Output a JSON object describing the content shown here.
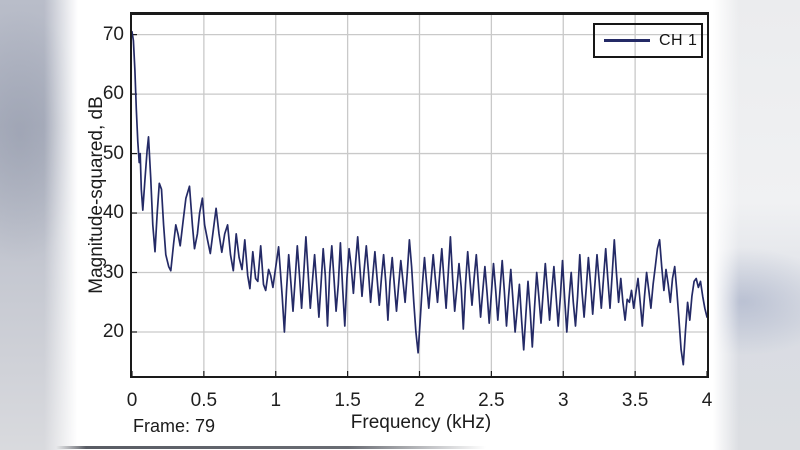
{
  "footer": {
    "frame_label": "Frame: 79"
  },
  "colors": {
    "background": "#ffffff",
    "grid": "#c9c9c9",
    "axis": "#1a1a1a",
    "line": "#242a66",
    "text": "#1c1c1c"
  },
  "chart_data": {
    "type": "line",
    "title": "",
    "xlabel": "Frequency (kHz)",
    "ylabel": "Magnitude-squared, dB",
    "xlim": [
      0,
      4
    ],
    "ylim": [
      12.6,
      73.3
    ],
    "xticks": [
      0,
      0.5,
      1,
      1.5,
      2,
      2.5,
      3,
      3.5,
      4
    ],
    "yticks": [
      20,
      30,
      40,
      50,
      60,
      70
    ],
    "grid": true,
    "legend": {
      "position": "top-right",
      "entries": [
        {
          "label": "CH 1",
          "color": "#242a66"
        }
      ]
    },
    "series": [
      {
        "name": "CH 1",
        "color": "#242a66",
        "points": [
          [
            0.0,
            70.5
          ],
          [
            0.01,
            69.0
          ],
          [
            0.02,
            64.0
          ],
          [
            0.03,
            57.5
          ],
          [
            0.04,
            52.0
          ],
          [
            0.05,
            48.5
          ],
          [
            0.057,
            50.0
          ],
          [
            0.065,
            44.0
          ],
          [
            0.075,
            40.5
          ],
          [
            0.09,
            45.5
          ],
          [
            0.105,
            50.5
          ],
          [
            0.115,
            52.8
          ],
          [
            0.13,
            46.0
          ],
          [
            0.145,
            38.0
          ],
          [
            0.16,
            33.5
          ],
          [
            0.175,
            40.0
          ],
          [
            0.19,
            45.0
          ],
          [
            0.205,
            44.0
          ],
          [
            0.22,
            38.0
          ],
          [
            0.235,
            33.0
          ],
          [
            0.255,
            31.0
          ],
          [
            0.27,
            30.3
          ],
          [
            0.29,
            35.0
          ],
          [
            0.305,
            38.0
          ],
          [
            0.32,
            36.5
          ],
          [
            0.335,
            34.5
          ],
          [
            0.355,
            38.5
          ],
          [
            0.375,
            42.5
          ],
          [
            0.4,
            44.5
          ],
          [
            0.42,
            38.0
          ],
          [
            0.435,
            34.0
          ],
          [
            0.455,
            36.5
          ],
          [
            0.47,
            40.0
          ],
          [
            0.49,
            42.5
          ],
          [
            0.505,
            38.0
          ],
          [
            0.525,
            35.5
          ],
          [
            0.545,
            33.2
          ],
          [
            0.565,
            37.0
          ],
          [
            0.585,
            40.8
          ],
          [
            0.605,
            36.5
          ],
          [
            0.625,
            33.4
          ],
          [
            0.645,
            36.5
          ],
          [
            0.665,
            38.0
          ],
          [
            0.685,
            33.0
          ],
          [
            0.705,
            30.3
          ],
          [
            0.725,
            36.5
          ],
          [
            0.745,
            32.5
          ],
          [
            0.765,
            30.5
          ],
          [
            0.785,
            35.5
          ],
          [
            0.805,
            29.5
          ],
          [
            0.82,
            27.3
          ],
          [
            0.84,
            33.5
          ],
          [
            0.86,
            29.0
          ],
          [
            0.875,
            28.5
          ],
          [
            0.895,
            34.5
          ],
          [
            0.915,
            28.0
          ],
          [
            0.93,
            27.0
          ],
          [
            0.95,
            30.5
          ],
          [
            0.965,
            29.5
          ],
          [
            0.98,
            27.5
          ],
          [
            1.0,
            31.0
          ],
          [
            1.02,
            34.3
          ],
          [
            1.045,
            26.0
          ],
          [
            1.06,
            20.0
          ],
          [
            1.075,
            27.0
          ],
          [
            1.09,
            33.0
          ],
          [
            1.105,
            28.5
          ],
          [
            1.12,
            23.5
          ],
          [
            1.135,
            29.0
          ],
          [
            1.15,
            34.5
          ],
          [
            1.165,
            29.5
          ],
          [
            1.18,
            24.0
          ],
          [
            1.195,
            30.0
          ],
          [
            1.21,
            36.0
          ],
          [
            1.225,
            30.0
          ],
          [
            1.24,
            24.0
          ],
          [
            1.255,
            28.5
          ],
          [
            1.27,
            33.0
          ],
          [
            1.285,
            28.0
          ],
          [
            1.3,
            22.5
          ],
          [
            1.315,
            28.0
          ],
          [
            1.33,
            34.0
          ],
          [
            1.345,
            29.5
          ],
          [
            1.36,
            21.0
          ],
          [
            1.375,
            30.0
          ],
          [
            1.39,
            34.5
          ],
          [
            1.405,
            29.0
          ],
          [
            1.42,
            23.5
          ],
          [
            1.435,
            28.0
          ],
          [
            1.45,
            35.0
          ],
          [
            1.465,
            27.5
          ],
          [
            1.48,
            21.0
          ],
          [
            1.495,
            29.0
          ],
          [
            1.51,
            34.0
          ],
          [
            1.525,
            31.0
          ],
          [
            1.54,
            26.5
          ],
          [
            1.555,
            31.5
          ],
          [
            1.57,
            36.0
          ],
          [
            1.585,
            31.0
          ],
          [
            1.6,
            26.0
          ],
          [
            1.615,
            30.5
          ],
          [
            1.63,
            34.5
          ],
          [
            1.645,
            30.0
          ],
          [
            1.66,
            25.0
          ],
          [
            1.675,
            29.5
          ],
          [
            1.69,
            33.5
          ],
          [
            1.705,
            29.0
          ],
          [
            1.72,
            24.5
          ],
          [
            1.735,
            29.0
          ],
          [
            1.75,
            33.0
          ],
          [
            1.765,
            28.5
          ],
          [
            1.78,
            22.0
          ],
          [
            1.795,
            28.5
          ],
          [
            1.81,
            32.5
          ],
          [
            1.825,
            28.0
          ],
          [
            1.84,
            23.5
          ],
          [
            1.855,
            28.0
          ],
          [
            1.87,
            32.0
          ],
          [
            1.885,
            28.5
          ],
          [
            1.9,
            25.0
          ],
          [
            1.915,
            30.0
          ],
          [
            1.93,
            35.5
          ],
          [
            1.945,
            31.0
          ],
          [
            1.96,
            25.0
          ],
          [
            1.975,
            20.0
          ],
          [
            1.99,
            16.5
          ],
          [
            2.005,
            22.0
          ],
          [
            2.02,
            28.0
          ],
          [
            2.035,
            32.5
          ],
          [
            2.05,
            28.0
          ],
          [
            2.065,
            24.0
          ],
          [
            2.08,
            28.5
          ],
          [
            2.095,
            33.0
          ],
          [
            2.11,
            29.0
          ],
          [
            2.125,
            25.0
          ],
          [
            2.14,
            29.5
          ],
          [
            2.155,
            34.0
          ],
          [
            2.17,
            29.0
          ],
          [
            2.185,
            24.0
          ],
          [
            2.2,
            30.0
          ],
          [
            2.215,
            36.0
          ],
          [
            2.23,
            29.0
          ],
          [
            2.245,
            23.5
          ],
          [
            2.26,
            27.5
          ],
          [
            2.275,
            31.5
          ],
          [
            2.29,
            27.5
          ],
          [
            2.305,
            20.5
          ],
          [
            2.32,
            28.0
          ],
          [
            2.335,
            33.5
          ],
          [
            2.35,
            29.0
          ],
          [
            2.365,
            24.5
          ],
          [
            2.38,
            29.0
          ],
          [
            2.395,
            33.0
          ],
          [
            2.41,
            28.0
          ],
          [
            2.425,
            22.5
          ],
          [
            2.44,
            27.0
          ],
          [
            2.455,
            31.0
          ],
          [
            2.47,
            26.5
          ],
          [
            2.485,
            21.5
          ],
          [
            2.5,
            26.5
          ],
          [
            2.515,
            31.5
          ],
          [
            2.53,
            27.0
          ],
          [
            2.545,
            22.0
          ],
          [
            2.56,
            27.0
          ],
          [
            2.575,
            32.0
          ],
          [
            2.59,
            27.0
          ],
          [
            2.605,
            21.0
          ],
          [
            2.62,
            26.0
          ],
          [
            2.635,
            30.5
          ],
          [
            2.65,
            25.5
          ],
          [
            2.665,
            20.0
          ],
          [
            2.68,
            24.0
          ],
          [
            2.695,
            28.0
          ],
          [
            2.71,
            22.0
          ],
          [
            2.725,
            17.0
          ],
          [
            2.74,
            23.0
          ],
          [
            2.755,
            28.5
          ],
          [
            2.77,
            23.5
          ],
          [
            2.785,
            17.5
          ],
          [
            2.8,
            24.0
          ],
          [
            2.815,
            30.0
          ],
          [
            2.83,
            26.0
          ],
          [
            2.845,
            21.5
          ],
          [
            2.86,
            26.5
          ],
          [
            2.875,
            31.5
          ],
          [
            2.89,
            27.0
          ],
          [
            2.905,
            22.0
          ],
          [
            2.92,
            27.0
          ],
          [
            2.935,
            31.0
          ],
          [
            2.95,
            26.0
          ],
          [
            2.965,
            21.0
          ],
          [
            2.98,
            26.0
          ],
          [
            2.995,
            32.0
          ],
          [
            3.01,
            25.5
          ],
          [
            3.025,
            20.0
          ],
          [
            3.04,
            25.5
          ],
          [
            3.055,
            30.0
          ],
          [
            3.07,
            25.0
          ],
          [
            3.085,
            21.0
          ],
          [
            3.1,
            26.0
          ],
          [
            3.115,
            33.0
          ],
          [
            3.13,
            27.0
          ],
          [
            3.145,
            22.5
          ],
          [
            3.16,
            27.5
          ],
          [
            3.175,
            32.5
          ],
          [
            3.19,
            28.0
          ],
          [
            3.205,
            23.0
          ],
          [
            3.22,
            28.0
          ],
          [
            3.235,
            33.0
          ],
          [
            3.25,
            28.5
          ],
          [
            3.265,
            24.0
          ],
          [
            3.28,
            29.0
          ],
          [
            3.295,
            34.0
          ],
          [
            3.31,
            29.0
          ],
          [
            3.325,
            24.0
          ],
          [
            3.34,
            29.5
          ],
          [
            3.355,
            35.5
          ],
          [
            3.37,
            30.0
          ],
          [
            3.385,
            25.0
          ],
          [
            3.4,
            29.0
          ],
          [
            3.415,
            25.0
          ],
          [
            3.43,
            22.0
          ],
          [
            3.445,
            25.5
          ],
          [
            3.46,
            25.0
          ],
          [
            3.475,
            27.0
          ],
          [
            3.49,
            24.0
          ],
          [
            3.505,
            26.5
          ],
          [
            3.52,
            29.0
          ],
          [
            3.535,
            25.0
          ],
          [
            3.55,
            21.0
          ],
          [
            3.565,
            26.0
          ],
          [
            3.58,
            30.0
          ],
          [
            3.595,
            27.0
          ],
          [
            3.61,
            24.0
          ],
          [
            3.625,
            28.0
          ],
          [
            3.64,
            31.0
          ],
          [
            3.655,
            34.0
          ],
          [
            3.67,
            35.5
          ],
          [
            3.685,
            31.0
          ],
          [
            3.7,
            27.0
          ],
          [
            3.715,
            30.5
          ],
          [
            3.73,
            28.0
          ],
          [
            3.745,
            25.0
          ],
          [
            3.76,
            29.0
          ],
          [
            3.775,
            31.0
          ],
          [
            3.79,
            27.0
          ],
          [
            3.805,
            22.0
          ],
          [
            3.82,
            17.0
          ],
          [
            3.835,
            14.5
          ],
          [
            3.85,
            20.0
          ],
          [
            3.865,
            25.0
          ],
          [
            3.88,
            22.0
          ],
          [
            3.895,
            26.0
          ],
          [
            3.91,
            28.5
          ],
          [
            3.925,
            29.0
          ],
          [
            3.94,
            27.5
          ],
          [
            3.955,
            28.5
          ],
          [
            3.97,
            26.0
          ],
          [
            3.985,
            24.0
          ],
          [
            4.0,
            22.5
          ]
        ]
      }
    ]
  }
}
